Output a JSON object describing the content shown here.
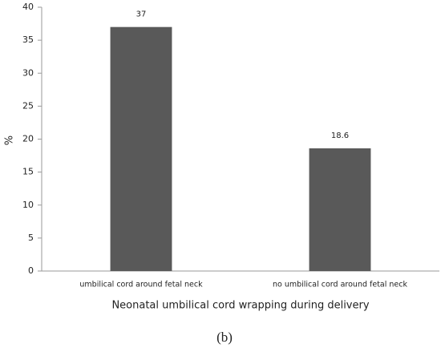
{
  "chart_data": {
    "type": "bar",
    "categories": [
      "umbilical cord around fetal neck",
      "no umbilical cord around fetal neck"
    ],
    "values": [
      37,
      18.6
    ],
    "color": "#595959",
    "ylim": [
      0,
      40
    ],
    "yticks": [
      0,
      5,
      10,
      15,
      20,
      25,
      30,
      35,
      40
    ],
    "ylabel": "%",
    "xlabel": "Neonatal umbilical cord wrapping during delivery",
    "caption": "(b)",
    "grid": false
  }
}
